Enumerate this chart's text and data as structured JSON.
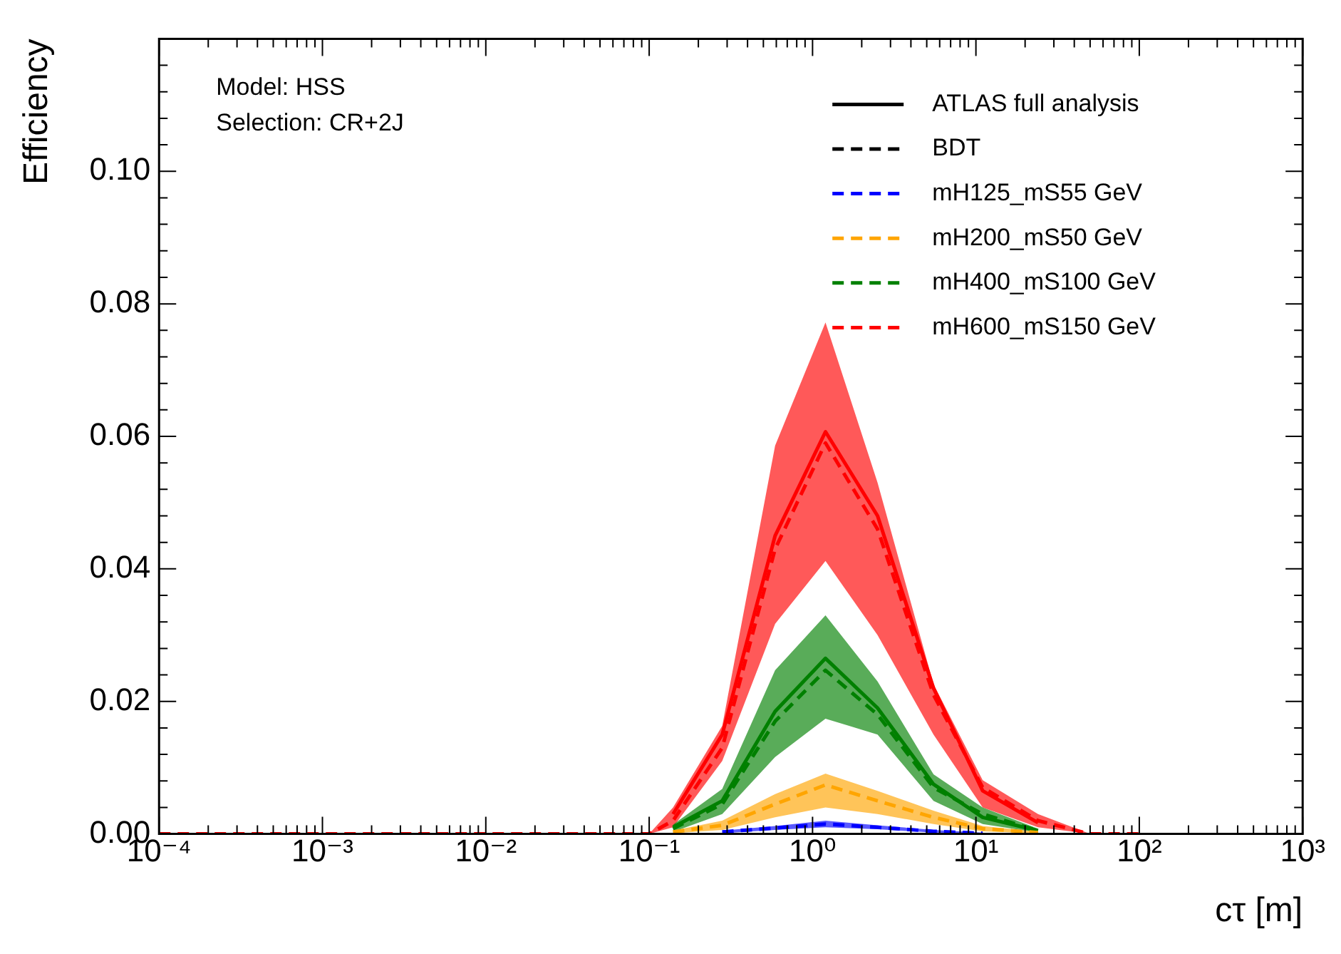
{
  "chart_data": {
    "type": "line",
    "xlabel": "cτ [m]",
    "ylabel": "Efficiency",
    "log": "x",
    "grid": false,
    "legend": "top right",
    "xlim": [
      0.0001,
      1000
    ],
    "ylim": [
      0,
      0.12
    ],
    "xticks": [
      {
        "value": 0.0001,
        "label": "10⁻⁴"
      },
      {
        "value": 0.001,
        "label": "10⁻³"
      },
      {
        "value": 0.01,
        "label": "10⁻²"
      },
      {
        "value": 0.1,
        "label": "10⁻¹"
      },
      {
        "value": 1,
        "label": "10⁰"
      },
      {
        "value": 10,
        "label": "10¹"
      },
      {
        "value": 100,
        "label": "10²"
      },
      {
        "value": 1000,
        "label": "10³"
      }
    ],
    "yticks": [
      {
        "value": 0,
        "label": "0.00"
      },
      {
        "value": 0.02,
        "label": "0.02"
      },
      {
        "value": 0.04,
        "label": "0.04"
      },
      {
        "value": 0.06,
        "label": "0.06"
      },
      {
        "value": 0.08,
        "label": "0.08"
      },
      {
        "value": 0.1,
        "label": "0.10"
      }
    ],
    "annotations": [
      "Model: HSS",
      "Selection: CR+2J"
    ],
    "series": [
      {
        "name": "ATLAS full analysis",
        "color": "#000000",
        "line_style": "solid"
      },
      {
        "name": "BDT",
        "color": "#000000",
        "line_style": "dashed"
      },
      {
        "name": "mH125_mS55 GeV",
        "color": "#0000ff",
        "line_style": "dashed",
        "x": [
          0.28,
          0.59,
          1.2,
          2.5,
          5.5,
          11
        ],
        "values": [
          0.0003,
          0.0009,
          0.0015,
          0.001,
          0.0004,
          0.0001
        ],
        "lower": [
          0.0001,
          0.0006,
          0.001,
          0.0007,
          0.0002,
          0
        ],
        "upper": [
          0.0005,
          0.0012,
          0.002,
          0.0013,
          0.0006,
          0.0002
        ]
      },
      {
        "name": "mH200_mS50 GeV",
        "color": "#ffa500",
        "line_style": "dashed",
        "x": [
          0.14,
          0.28,
          0.59,
          1.2,
          2.5,
          5.5,
          11,
          24
        ],
        "values": [
          0.0003,
          0.0013,
          0.0045,
          0.0074,
          0.005,
          0.0025,
          0.0008,
          0.0002
        ],
        "lower": [
          0.0001,
          0.0006,
          0.0025,
          0.004,
          0.003,
          0.0015,
          0.0004,
          0.0001
        ],
        "upper": [
          0.0005,
          0.002,
          0.006,
          0.0091,
          0.0065,
          0.0035,
          0.0012,
          0.0003
        ]
      },
      {
        "color": "#008000",
        "line_style": "solid",
        "x": [
          0.14,
          0.28,
          0.59,
          1.2,
          2.5,
          5.5,
          11,
          24
        ],
        "values": [
          0.001,
          0.005,
          0.0185,
          0.0265,
          0.019,
          0.0075,
          0.0025,
          0.0005
        ]
      },
      {
        "name": "mH400_mS100 GeV",
        "color": "#008000",
        "line_style": "dashed",
        "x": [
          0.14,
          0.28,
          0.59,
          1.2,
          2.5,
          5.5,
          11,
          24
        ],
        "values": [
          0.0008,
          0.0045,
          0.017,
          0.0247,
          0.018,
          0.007,
          0.003,
          0.0005
        ],
        "lower": [
          0.0003,
          0.003,
          0.0116,
          0.0174,
          0.015,
          0.005,
          0.0015,
          0.0002
        ],
        "upper": [
          0.0014,
          0.0068,
          0.0247,
          0.033,
          0.023,
          0.009,
          0.004,
          0.0008
        ]
      },
      {
        "color": "#ff0000",
        "line_style": "solid",
        "x": [
          0.14,
          0.28,
          0.59,
          1.2,
          2.5,
          5.5,
          11,
          24
        ],
        "values": [
          0.003,
          0.015,
          0.045,
          0.0607,
          0.048,
          0.022,
          0.0065,
          0.0017
        ]
      },
      {
        "name": "mH600_mS150 GeV",
        "color": "#ff0000",
        "line_style": "dashed",
        "x": [
          0.0001,
          0.001,
          0.01,
          0.1,
          0.14,
          0.28,
          0.59,
          1.2,
          2.5,
          5.5,
          11,
          24,
          50,
          100
        ],
        "values": [
          0,
          0,
          0,
          0,
          0.002,
          0.013,
          0.043,
          0.059,
          0.046,
          0.021,
          0.007,
          0.002,
          0,
          0
        ],
        "lower": [
          0,
          0,
          0,
          0,
          0.001,
          0.011,
          0.0317,
          0.0412,
          0.03,
          0.015,
          0.004,
          0.001,
          0,
          0
        ],
        "upper": [
          0,
          0,
          0,
          0,
          0.004,
          0.0163,
          0.0586,
          0.0772,
          0.053,
          0.0226,
          0.0081,
          0.003,
          0,
          0
        ]
      }
    ]
  }
}
